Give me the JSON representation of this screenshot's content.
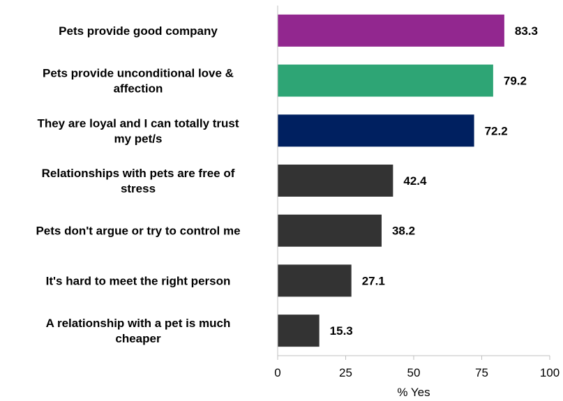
{
  "chart_data": {
    "type": "bar",
    "orientation": "horizontal",
    "categories": [
      [
        "Pets provide good company"
      ],
      [
        "Pets provide unconditional love &",
        "affection"
      ],
      [
        "They are loyal and I can totally trust",
        "my pet/s"
      ],
      [
        "Relationships with pets are free of",
        "stress"
      ],
      [
        "Pets don't argue or try to control me"
      ],
      [
        "It's hard to meet the right person"
      ],
      [
        "A relationship with a pet is much",
        "cheaper"
      ]
    ],
    "values": [
      83.3,
      79.2,
      72.2,
      42.4,
      38.2,
      27.1,
      15.3
    ],
    "value_labels": [
      "83.3",
      "79.2",
      "72.2",
      "42.4",
      "38.2",
      "27.1",
      "15.3"
    ],
    "colors": [
      "#92278F",
      "#2EA575",
      "#002060",
      "#333333",
      "#333333",
      "#333333",
      "#333333"
    ],
    "xlabel": "% Yes",
    "xlim": [
      0,
      100
    ],
    "xticks": [
      "0",
      "25",
      "50",
      "75",
      "100"
    ],
    "grid": false,
    "legend": "none"
  }
}
